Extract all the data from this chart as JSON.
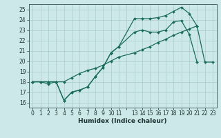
{
  "bg_color": "#cce8e8",
  "grid_color": "#aacccc",
  "line_color": "#1a6b5a",
  "xlabel": "Humidex (Indice chaleur)",
  "xlim": [
    -0.5,
    23.5
  ],
  "ylim": [
    15.5,
    25.5
  ],
  "xtick_labels": [
    "0",
    "1",
    "2",
    "3",
    "4",
    "5",
    "6",
    "7",
    "8",
    "9",
    "10",
    "11",
    "",
    "13",
    "14",
    "15",
    "16",
    "17",
    "18",
    "19",
    "20",
    "21",
    "22",
    "23"
  ],
  "yticks": [
    16,
    17,
    18,
    19,
    20,
    21,
    22,
    23,
    24,
    25
  ],
  "line1_x": [
    0,
    1,
    2,
    3,
    4,
    5,
    6,
    7,
    8,
    9,
    10,
    11,
    13,
    14,
    15,
    16,
    17,
    18,
    19,
    20,
    21
  ],
  "line1_y": [
    18.0,
    18.0,
    18.0,
    18.0,
    16.2,
    17.0,
    17.2,
    17.5,
    18.5,
    19.4,
    20.8,
    21.4,
    22.8,
    23.0,
    22.8,
    22.8,
    23.0,
    23.8,
    23.9,
    22.6,
    19.9
  ],
  "line2_x": [
    0,
    1,
    2,
    3,
    4,
    5,
    6,
    7,
    8,
    9,
    10,
    11,
    13,
    14,
    15,
    16,
    17,
    18,
    19,
    20,
    21,
    22,
    23
  ],
  "line2_y": [
    18.0,
    18.0,
    18.0,
    18.0,
    18.0,
    18.4,
    18.8,
    19.1,
    19.3,
    19.6,
    20.0,
    20.4,
    20.8,
    21.1,
    21.4,
    21.8,
    22.1,
    22.5,
    22.8,
    23.1,
    23.4,
    19.9,
    19.9
  ],
  "line3_x": [
    0,
    1,
    2,
    3,
    4,
    5,
    6,
    7,
    8,
    9,
    10,
    11,
    13,
    14,
    15,
    16,
    17,
    18,
    19,
    20,
    21
  ],
  "line3_y": [
    18.0,
    18.0,
    17.8,
    18.0,
    16.2,
    17.0,
    17.2,
    17.5,
    18.5,
    19.4,
    20.8,
    21.4,
    24.1,
    24.1,
    24.1,
    24.2,
    24.4,
    24.8,
    25.2,
    24.6,
    23.4
  ]
}
